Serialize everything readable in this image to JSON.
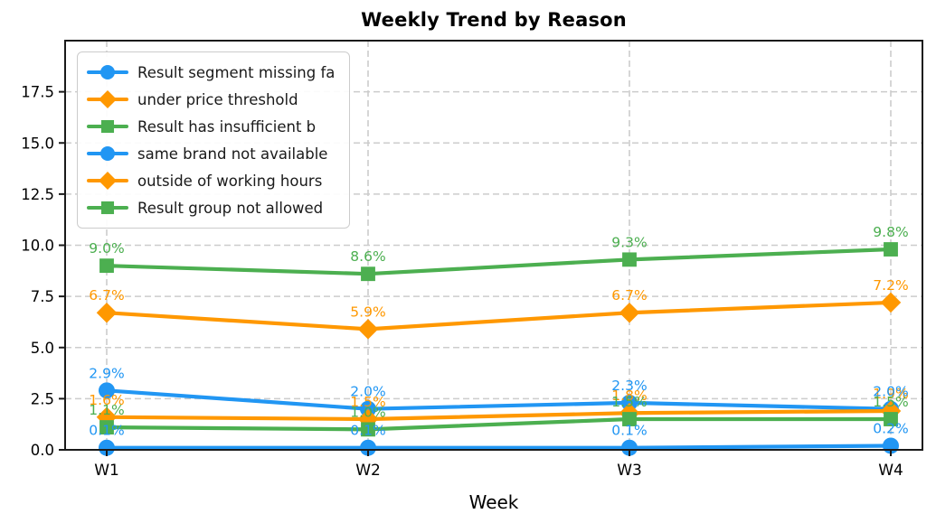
{
  "title": "Weekly Trend by Reason",
  "xlabel": "Week",
  "chart_data": {
    "type": "line",
    "categories": [
      "W1",
      "W2",
      "W3",
      "W4"
    ],
    "yticks": [
      "0.0",
      "2.5",
      "5.0",
      "7.5",
      "10.0",
      "12.5",
      "15.0",
      "17.5"
    ],
    "ylim": [
      0,
      20
    ],
    "grid": true,
    "grid_style": "dashed",
    "legend_position": "upper-left",
    "series": [
      {
        "name": "Result segment missing fa",
        "color": "#2196F3",
        "marker": "circle",
        "values": [
          2.9,
          2.0,
          2.3,
          2.0
        ],
        "point_labels": [
          "2.9%",
          "2.0%",
          "2.3%",
          "2.0%"
        ]
      },
      {
        "name": "under price threshold",
        "color": "#FF9800",
        "marker": "diamond",
        "values": [
          6.7,
          5.9,
          6.7,
          7.2
        ],
        "point_labels": [
          "6.7%",
          "5.9%",
          "6.7%",
          "7.2%"
        ]
      },
      {
        "name": "Result has insufficient b",
        "color": "#4CAF50",
        "marker": "square",
        "values": [
          9.0,
          8.6,
          9.3,
          9.8
        ],
        "point_labels": [
          "9.0%",
          "8.6%",
          "9.3%",
          "9.8%"
        ]
      },
      {
        "name": "same brand not available",
        "color": "#2196F3",
        "marker": "circle",
        "values": [
          0.1,
          0.1,
          0.1,
          0.2
        ],
        "point_labels": [
          "0.1%",
          "0.1%",
          "0.1%",
          "0.2%"
        ]
      },
      {
        "name": "outside of working hours",
        "color": "#FF9800",
        "marker": "diamond",
        "values": [
          1.6,
          1.5,
          1.8,
          1.9
        ],
        "point_labels": [
          "1.6%",
          "1.5%",
          "1.8%",
          "1.9%"
        ]
      },
      {
        "name": "Result group not allowed",
        "color": "#4CAF50",
        "marker": "square",
        "values": [
          1.1,
          1.0,
          1.5,
          1.5
        ],
        "point_labels": [
          "1.1%",
          "1.0%",
          "1.5%",
          "1.5%"
        ]
      }
    ],
    "colors": {
      "axis": "#1a1a1a",
      "grid": "#cccccc",
      "tick_text": "#000000"
    }
  }
}
